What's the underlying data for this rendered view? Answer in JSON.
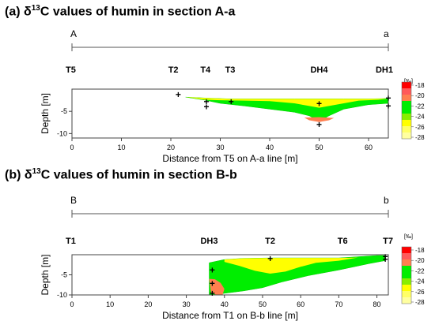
{
  "panels": [
    {
      "title": {
        "prefix": "(a) δ",
        "superscript": "13",
        "suffix": "C values of humin in section A-a"
      },
      "section_start_label": "A",
      "section_end_label": "a",
      "stations": [
        {
          "label": "T5",
          "x": 0
        },
        {
          "label": "T2",
          "x": 20.5
        },
        {
          "label": "T4",
          "x": 27
        },
        {
          "label": "T3",
          "x": 32
        },
        {
          "label": "DH4",
          "x": 50
        },
        {
          "label": "DH1",
          "x": 63.5
        }
      ],
      "sample_points": [
        {
          "x": 21.5,
          "depth": -1.2
        },
        {
          "x": 27.2,
          "depth": -2.8
        },
        {
          "x": 27.2,
          "depth": -4.0
        },
        {
          "x": 32.2,
          "depth": -2.8
        },
        {
          "x": 50.0,
          "depth": -3.3
        },
        {
          "x": 50.0,
          "depth": -8.0
        },
        {
          "x": 64.0,
          "depth": -2.0
        },
        {
          "x": 64.0,
          "depth": -3.8
        }
      ]
    },
    {
      "title": {
        "prefix": "(b) δ",
        "superscript": "13",
        "suffix": "C values of humin in section B-b"
      },
      "section_start_label": "B",
      "section_end_label": "b",
      "stations": [
        {
          "label": "T1",
          "x": 0
        },
        {
          "label": "DH3",
          "x": 36
        },
        {
          "label": "T2",
          "x": 52
        },
        {
          "label": "T6",
          "x": 71
        },
        {
          "label": "T7",
          "x": 82
        }
      ],
      "sample_points": [
        {
          "x": 52.0,
          "depth": -1.0
        },
        {
          "x": 36.8,
          "depth": -3.8
        },
        {
          "x": 36.8,
          "depth": -7.2
        },
        {
          "x": 36.8,
          "depth": -9.6
        },
        {
          "x": 82.2,
          "depth": -0.5
        },
        {
          "x": 82.2,
          "depth": -1.2
        }
      ]
    }
  ],
  "legend_colors": {
    "-18": "#ff0000",
    "-20": "#ff7f50",
    "-22": "#00ff00",
    "-24": "#00ff00",
    "-26": "#ffff00",
    "-28": "#ffff80"
  },
  "chart_data": [
    {
      "type": "heatmap",
      "xlabel": "Distance from T5 on A-a line [m]",
      "ylabel": "Depth [m]",
      "xlim": [
        0,
        64
      ],
      "ylim": [
        -11,
        0
      ],
      "xticks": [
        0,
        10,
        20,
        30,
        40,
        50,
        60
      ],
      "yticks": [
        -5,
        -10
      ],
      "colorbar": {
        "unit": "[‰]",
        "levels": [
          -18,
          -20,
          -22,
          -24,
          -26,
          -28
        ]
      },
      "section_outline": {
        "x": [
          23,
          27,
          32,
          40,
          45,
          50,
          55,
          60,
          64,
          64,
          60,
          55,
          52,
          50,
          48,
          45,
          40,
          35,
          30,
          27
        ],
        "depth": [
          -1.8,
          -2.0,
          -2.2,
          -2.2,
          -2.2,
          -2.2,
          -2.2,
          -2.2,
          -2.1,
          -3.2,
          -3.5,
          -4.5,
          -6.0,
          -7.2,
          -6.0,
          -5.2,
          -4.5,
          -3.8,
          -3.2,
          -2.5
        ]
      },
      "regions": [
        {
          "value": -26,
          "x": [
            23,
            27,
            32,
            40,
            45,
            50,
            55,
            60,
            64,
            62,
            58,
            55,
            52,
            50,
            48,
            45,
            40,
            35,
            30,
            27
          ],
          "depth": [
            -1.8,
            -2.0,
            -2.2,
            -2.2,
            -2.2,
            -2.2,
            -2.2,
            -2.2,
            -2.1,
            -2.4,
            -2.6,
            -3.2,
            -3.8,
            -4.2,
            -3.8,
            -3.2,
            -2.7,
            -2.6,
            -2.5,
            -2.4
          ]
        },
        {
          "value": -20,
          "x": [
            47,
            50,
            53,
            52,
            50,
            48
          ],
          "depth": [
            -6.4,
            -6.3,
            -6.5,
            -7.0,
            -7.4,
            -7.0
          ]
        }
      ]
    },
    {
      "type": "heatmap",
      "xlabel": "Distance from T1 on B-b line [m]",
      "ylabel": "Depth [m]",
      "xlim": [
        0,
        83
      ],
      "ylim": [
        -10,
        0
      ],
      "xticks": [
        0,
        10,
        20,
        30,
        40,
        50,
        60,
        70,
        80
      ],
      "yticks": [
        -5,
        -10
      ],
      "colorbar": {
        "unit": "[‰]",
        "levels": [
          -18,
          -20,
          -22,
          -24,
          -26,
          -28
        ]
      },
      "section_outline": {
        "x": [
          36,
          40,
          45,
          52,
          60,
          70,
          80,
          82,
          82,
          78,
          70,
          62,
          55,
          50,
          45,
          40,
          37,
          36
        ],
        "depth": [
          -2.0,
          -1.2,
          -0.9,
          -0.8,
          -0.8,
          -0.8,
          -0.2,
          -0.2,
          -1.5,
          -2.2,
          -3.8,
          -5.2,
          -6.8,
          -8.2,
          -9.0,
          -9.6,
          -10.0,
          -10.0
        ]
      },
      "regions": [
        {
          "value": -26,
          "x": [
            40,
            45,
            52,
            60,
            66,
            70,
            75,
            70,
            64,
            60,
            56,
            52,
            48,
            44,
            40
          ],
          "depth": [
            -1.2,
            -0.9,
            -0.8,
            -0.8,
            -0.8,
            -0.8,
            -0.7,
            -1.5,
            -2.0,
            -3.0,
            -4.2,
            -4.7,
            -4.0,
            -2.8,
            -1.8
          ]
        },
        {
          "value": -20,
          "x": [
            36,
            37.5,
            39,
            40,
            39.5,
            38,
            36.5
          ],
          "depth": [
            -6.0,
            -6.1,
            -7.0,
            -8.5,
            -10.0,
            -10.0,
            -9.5
          ]
        }
      ]
    }
  ]
}
